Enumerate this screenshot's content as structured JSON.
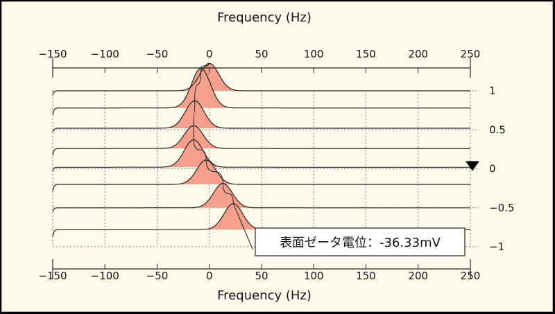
{
  "chart_data": {
    "type": "line",
    "subtype": "waterfall-spectra",
    "xlabel_top": "Frequency (Hz)",
    "xlabel_bottom": "Frequency (Hz)",
    "x_ticks": [
      -150,
      -100,
      -50,
      0,
      50,
      100,
      150,
      200,
      250
    ],
    "xlim": [
      -150,
      250
    ],
    "right_axis_ticks": [
      "1",
      "0.5",
      "0",
      "-0.5",
      "-1"
    ],
    "right_axis_values": [
      1,
      0.5,
      0,
      -0.5,
      -1
    ],
    "right_axis_range": [
      -1,
      1
    ],
    "grid": true,
    "series": [
      {
        "offset": 1.0,
        "peak_freq": 0,
        "peak_height": 0.18
      },
      {
        "offset": 0.78,
        "peak_freq": -8,
        "peak_height": 0.26
      },
      {
        "offset": 0.52,
        "peak_freq": -14,
        "peak_height": 0.18
      },
      {
        "offset": 0.26,
        "peak_freq": -15,
        "peak_height": 0.15
      },
      {
        "offset": 0.02,
        "peak_freq": -15,
        "peak_height": 0.18
      },
      {
        "offset": -0.2,
        "peak_freq": -3,
        "peak_height": 0.16
      },
      {
        "offset": -0.5,
        "peak_freq": 13,
        "peak_height": 0.16
      },
      {
        "offset": -0.78,
        "peak_freq": 23,
        "peak_height": 0.17
      }
    ],
    "marker": {
      "shape": "down-triangle",
      "value": 0
    },
    "annotation": "表面ゼータ電位：-36.33mV",
    "colors": {
      "peak_fill": "#f5a08c",
      "line": "#222222",
      "grid": "#777777"
    }
  }
}
